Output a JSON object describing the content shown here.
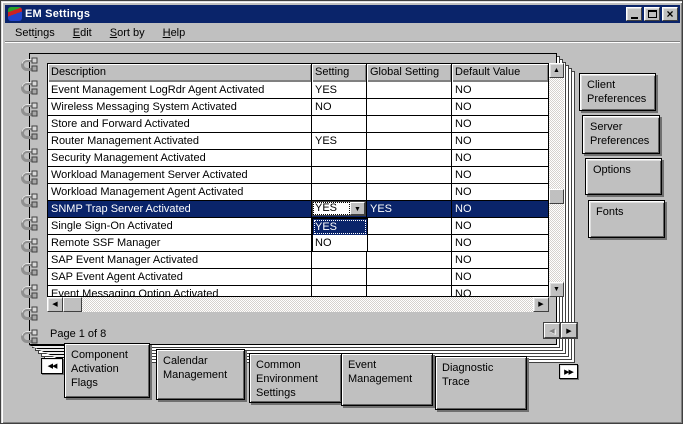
{
  "window": {
    "title": "EM Settings"
  },
  "titlebar_icons": {
    "minimize": "minimize",
    "maximize": "maximize",
    "close": "×"
  },
  "menu": {
    "items": [
      {
        "label": "Settings",
        "underline": 4
      },
      {
        "label": "Edit",
        "underline": 0
      },
      {
        "label": "Sort by",
        "underline": 0
      },
      {
        "label": "Help",
        "underline": 0
      }
    ]
  },
  "table": {
    "columns": [
      "Description",
      "Setting",
      "Global Setting",
      "Default Value"
    ],
    "rows": [
      {
        "description": "Event Management LogRdr Agent Activated",
        "setting": "YES",
        "global_setting": "",
        "default_value": "NO",
        "selected": false,
        "has_combo": false
      },
      {
        "description": "Wireless Messaging System Activated",
        "setting": "NO",
        "global_setting": "",
        "default_value": "NO",
        "selected": false,
        "has_combo": false
      },
      {
        "description": "Store and Forward Activated",
        "setting": "",
        "global_setting": "",
        "default_value": "NO",
        "selected": false,
        "has_combo": false
      },
      {
        "description": "Router Management Activated",
        "setting": "YES",
        "global_setting": "",
        "default_value": "NO",
        "selected": false,
        "has_combo": false
      },
      {
        "description": "Security Management Activated",
        "setting": "",
        "global_setting": "",
        "default_value": "NO",
        "selected": false,
        "has_combo": false
      },
      {
        "description": "Workload Management Server Activated",
        "setting": "",
        "global_setting": "",
        "default_value": "NO",
        "selected": false,
        "has_combo": false
      },
      {
        "description": "Workload Management Agent Activated",
        "setting": "",
        "global_setting": "",
        "default_value": "NO",
        "selected": false,
        "has_combo": false
      },
      {
        "description": "SNMP Trap Server Activated",
        "setting": "YES",
        "global_setting": "YES",
        "default_value": "NO",
        "selected": true,
        "has_combo": true
      },
      {
        "description": "Single Sign-On Activated",
        "setting": "",
        "global_setting": "",
        "default_value": "NO",
        "selected": false,
        "has_combo": false
      },
      {
        "description": "Remote SSF Manager",
        "setting": "",
        "global_setting": "",
        "default_value": "NO",
        "selected": false,
        "has_combo": false
      },
      {
        "description": "SAP Event Manager Activated",
        "setting": "",
        "global_setting": "",
        "default_value": "NO",
        "selected": false,
        "has_combo": false
      },
      {
        "description": "SAP Event Agent Activated",
        "setting": "",
        "global_setting": "",
        "default_value": "NO",
        "selected": false,
        "has_combo": false
      },
      {
        "description": "Event Messaging Option Activated",
        "setting": "",
        "global_setting": "",
        "default_value": "NO",
        "selected": false,
        "has_combo": false
      }
    ]
  },
  "combo": {
    "value": "YES",
    "options": [
      "YES",
      "NO"
    ],
    "selected_option": "YES"
  },
  "page_indicator": "Page 1 of 8",
  "tabs": [
    {
      "label": "Component Activation Flags",
      "active": true
    },
    {
      "label": "Calendar Management",
      "active": false
    },
    {
      "label": "Common Environment Settings",
      "active": false
    },
    {
      "label": "Event Management",
      "active": false
    },
    {
      "label": "Diagnostic Trace",
      "active": false
    }
  ],
  "side_buttons": [
    "Client Preferences",
    "Server Preferences",
    "Options",
    "Fonts"
  ],
  "icons": {
    "up_arrow": "▲",
    "down_arrow": "▼",
    "left_arrow": "◀",
    "right_arrow": "▶",
    "double_left": "◀◀",
    "double_right": "▶▶",
    "combo_arrow": "▼",
    "close": "×"
  },
  "colors": {
    "titlebar_bg": "#0a246a",
    "highlight_bg": "#0a246a",
    "window_bg": "#c0c0c0",
    "table_bg": "#ffffff"
  }
}
